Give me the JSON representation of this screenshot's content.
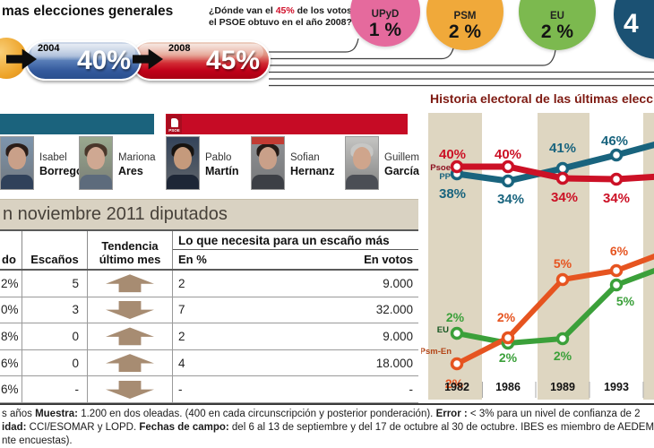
{
  "header": {
    "title": "mas elecciones generales",
    "question": {
      "pre": "¿Dónde van el ",
      "highlight": "45%",
      "post": " de los votos que el PSOE obtuvo en el año 2008?"
    },
    "timeline": [
      {
        "year": "2004",
        "value": "40%",
        "accent": "#33599c"
      },
      {
        "year": "2008",
        "value": "45%",
        "accent": "#c00019"
      }
    ],
    "badges": [
      {
        "name": "UPyD",
        "value": "1 %",
        "color": "#e56a9d"
      },
      {
        "name": "PSM",
        "value": "2 %",
        "color": "#f0a93a"
      },
      {
        "name": "EU",
        "value": "2 %",
        "color": "#7cb94f"
      },
      {
        "name": "",
        "value": "4",
        "color": "#1b5173"
      }
    ]
  },
  "parties": {
    "left_bar_color": "#1b637d",
    "right_bar_color": "#c60b25",
    "logo_label": "PSOE"
  },
  "candidates": [
    {
      "first": "Isabel",
      "last": "Borrego",
      "photo": {
        "bg": "#7d95ad",
        "hair": "#2a1d18",
        "skin": "#c9a089",
        "shirt": "#30415a",
        "banner": ""
      }
    },
    {
      "first": "Mariona",
      "last": "Ares",
      "photo": {
        "bg": "#9aa98e",
        "hair": "#4a372a",
        "skin": "#cfa892",
        "shirt": "#5d6b7c",
        "banner": ""
      }
    },
    {
      "first": "Pablo",
      "last": "Martín",
      "photo": {
        "bg": "#33435a",
        "hair": "#171310",
        "skin": "#c59a7c",
        "shirt": "#1d2636",
        "banner": ""
      }
    },
    {
      "first": "Sofian",
      "last": "Hernanz",
      "photo": {
        "bg": "#8f9296",
        "hair": "#241a16",
        "skin": "#c9a089",
        "shirt": "#3c3f45",
        "banner": "#c23b33"
      }
    },
    {
      "first": "Guillem",
      "last": "García",
      "photo": {
        "bg": "#c4c4c2",
        "hair": "#c7c7c5",
        "skin": "#cfa58c",
        "shirt": "#4b4e55",
        "banner": ""
      }
    }
  ],
  "table": {
    "title": "n noviembre 2011 diputados",
    "col1": "do",
    "col2": "Escaños",
    "col3_line1": "Tendencia",
    "col3_line2": "último mes",
    "group_header": "Lo que necesita para un escaño más",
    "sub_left": "En %",
    "sub_right": "En votos",
    "trend_color": "#a78c72",
    "rows": [
      {
        "result": "2%",
        "seats": "5",
        "trend": "up",
        "pct": "2",
        "votes": "9.000"
      },
      {
        "result": "0%",
        "seats": "3",
        "trend": "down",
        "pct": "7",
        "votes": "32.000"
      },
      {
        "result": "8%",
        "seats": "0",
        "trend": "up",
        "pct": "2",
        "votes": "9.000"
      },
      {
        "result": "6%",
        "seats": "0",
        "trend": "up",
        "pct": "4",
        "votes": "18.000"
      },
      {
        "result": "6%",
        "seats": "-",
        "trend": "down",
        "pct": "-",
        "votes": "-"
      }
    ]
  },
  "chart_data": {
    "type": "line",
    "title": "Historia electoral de las últimas eleccio",
    "x": [
      "1982",
      "1986",
      "1989",
      "1993"
    ],
    "stripe_color": "#ded6c1",
    "series": [
      {
        "name": "Psoe",
        "color": "#cc1126",
        "name_color": "#8c1020",
        "values": [
          40,
          40,
          34,
          34
        ],
        "labels": [
          "40%",
          "40%",
          "34%",
          "34%"
        ]
      },
      {
        "name": "PP",
        "color": "#19647e",
        "name_color": "#19647e",
        "values": [
          38,
          34,
          41,
          46
        ],
        "labels": [
          "38%",
          "34%",
          "41%",
          "46%"
        ]
      },
      {
        "name": "EU",
        "color": "#3ba03a",
        "name_color": "#14551f",
        "values": [
          2,
          2,
          2,
          5
        ],
        "labels": [
          "2%",
          "2%",
          "2%",
          "5%"
        ]
      },
      {
        "name": "Psm-En",
        "color": "#e65420",
        "name_color": "#b34416",
        "values": [
          2,
          2,
          5,
          6
        ],
        "labels": [
          "2%",
          "2%",
          "5%",
          "6%"
        ]
      }
    ]
  },
  "footer": {
    "lines": [
      [
        {
          "t": "s años ",
          "b": false
        },
        {
          "t": "Muestra:",
          "b": true
        },
        {
          "t": " 1.200 en dos oleadas. (400 en cada circunscripción y posterior ponderación). ",
          "b": false
        },
        {
          "t": "Error :",
          "b": true
        },
        {
          "t": " < 3% para un nivel de confianza de 2",
          "b": false
        }
      ],
      [
        {
          "t": "idad:",
          "b": true
        },
        {
          "t": " CCI/ESOMAR y LOPD. ",
          "b": false
        },
        {
          "t": "Fechas de campo:",
          "b": true
        },
        {
          "t": " del 6 al 13 de septiembre y del 17 de octubre al 30 de octubre. IBES es miembro de AEDEM",
          "b": false
        }
      ],
      [
        {
          "t": "nte encuestas).",
          "b": false
        }
      ]
    ]
  }
}
